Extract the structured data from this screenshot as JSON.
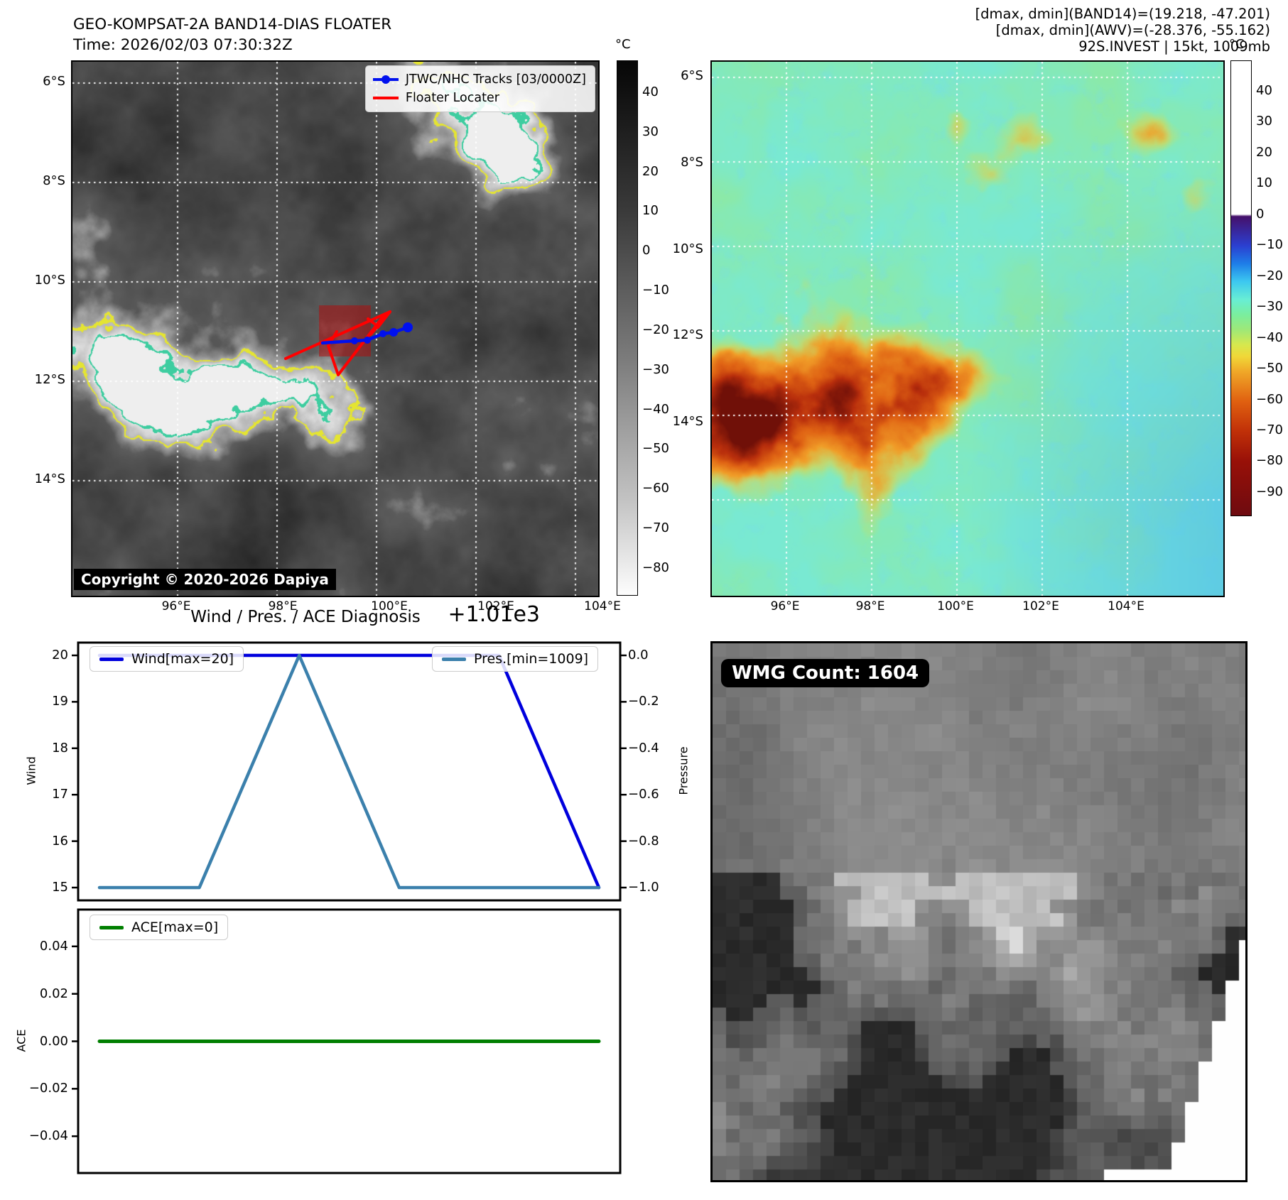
{
  "panel_tl": {
    "title_line1": "GEO-KOMPSAT-2A BAND14-DIAS FLOATER",
    "title_line2": "Time: 2026/02/03 07:30:32Z",
    "legend": {
      "track": "JTWC/NHC Tracks [03/0000Z]",
      "floater": "Floater Locater"
    },
    "copyright": "Copyright © 2020-2026 Dapiya",
    "lat_ticks": [
      "6°S",
      "8°S",
      "10°S",
      "12°S",
      "14°S"
    ],
    "lon_ticks": [
      "96°E",
      "98°E",
      "100°E",
      "102°E",
      "104°E"
    ],
    "colorbar": {
      "unit": "°C",
      "ticks": [
        "40",
        "30",
        "20",
        "10",
        "0",
        "−10",
        "−20",
        "−30",
        "−40",
        "−50",
        "−60",
        "−70",
        "−80"
      ]
    }
  },
  "panel_tr": {
    "info_lines": [
      "[dmax, dmin](BAND14)=(19.218, -47.201)",
      "[dmax, dmin](AWV)=(-28.376, -55.162)",
      "92S.INVEST | 15kt, 1009mb"
    ],
    "lat_ticks": [
      "6°S",
      "8°S",
      "10°S",
      "12°S",
      "14°S"
    ],
    "lon_ticks": [
      "96°E",
      "98°E",
      "100°E",
      "102°E",
      "104°E"
    ],
    "colorbar": {
      "unit": "°C",
      "ticks": [
        "40",
        "30",
        "20",
        "10",
        "0",
        "−10",
        "−20",
        "−30",
        "−40",
        "−50",
        "−60",
        "−70",
        "−80",
        "−90"
      ]
    }
  },
  "diagnosis": {
    "title": "Wind / Pres. / ACE Diagnosis",
    "pressure_offset_label": "+1.01e3",
    "wind_axis_label": "Wind",
    "pressure_axis_label": "Pressure",
    "ace_axis_label": "ACE",
    "wind_ticks": [
      "20",
      "19",
      "18",
      "17",
      "16",
      "15"
    ],
    "pressure_ticks": [
      "0.0",
      "−0.2",
      "−0.4",
      "−0.6",
      "−0.8",
      "−1.0"
    ],
    "ace_ticks": [
      "0.04",
      "0.02",
      "0.00",
      "−0.02",
      "−0.04"
    ],
    "legend_wind": "Wind[max=20]",
    "legend_pres": "Pres.[min=1009]",
    "legend_ace": "ACE[max=0]"
  },
  "chart_data": [
    {
      "type": "line",
      "title": "Wind / Pres. / ACE Diagnosis",
      "x": [
        0,
        1,
        2,
        3,
        4,
        5
      ],
      "series": [
        {
          "name": "Wind[max=20]",
          "axis": "left",
          "color": "#0000dd",
          "values": [
            20,
            20,
            20,
            20,
            20,
            15
          ]
        },
        {
          "name": "Pres.[min=1009]",
          "axis": "right",
          "color": "#3b80ac",
          "values": [
            1009,
            1009,
            1010,
            1009,
            1009,
            1009
          ]
        }
      ],
      "ylabel_left": "Wind",
      "yticks_left": [
        20,
        19,
        18,
        17,
        16,
        15
      ],
      "ylim_left": [
        14.725,
        20.275
      ],
      "ylabel_right": "Pressure",
      "yticks_right": [
        1010,
        1009.8,
        1009.6,
        1009.4,
        1009.2,
        1009
      ],
      "ylim_right": [
        1008.945,
        1010.055
      ],
      "right_axis_offset_label": "+1.01e3",
      "legend_position": [
        "upper left",
        "upper right"
      ],
      "grid": false
    },
    {
      "type": "line",
      "x": [
        0,
        1,
        2,
        3,
        4,
        5
      ],
      "series": [
        {
          "name": "ACE[max=0]",
          "axis": "left",
          "color": "#007f00",
          "values": [
            0,
            0,
            0,
            0,
            0,
            0
          ]
        }
      ],
      "ylabel": "ACE",
      "yticks": [
        0.04,
        0.02,
        0,
        -0.02,
        -0.04
      ],
      "ylim": [
        -0.0555,
        0.0555
      ],
      "legend_position": "upper left",
      "grid": false
    }
  ],
  "panel_br": {
    "badge": "WMG Count: 1604"
  },
  "colors": {
    "wind_line": "#0000dd",
    "pres_line": "#3b80ac",
    "ace_line": "#007f00",
    "track_blue": "#0010ee",
    "floater_red": "#ff0000",
    "floater_fill": "rgba(175,15,15,0.55)"
  }
}
